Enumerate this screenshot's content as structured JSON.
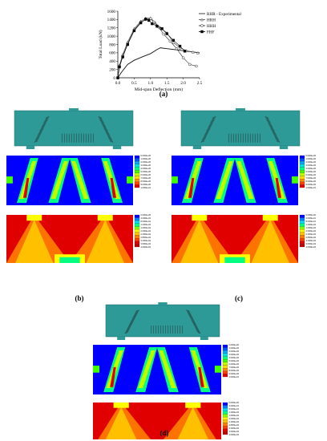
{
  "figure": {
    "labels": [
      "(a)",
      "(b)",
      "(c)",
      "(d)"
    ]
  },
  "chart_data": {
    "type": "line",
    "xlabel": "Mid-span Deflection (mm)",
    "ylabel": "Total Load (kN)",
    "xlim": [
      0,
      2.5
    ],
    "ylim": [
      0,
      1600
    ],
    "xticks": [
      "0.0",
      "0.5",
      "1.0",
      "1.5",
      "2.0",
      "2.5"
    ],
    "yticks": [
      "0",
      "200",
      "400",
      "600",
      "800",
      "1000",
      "1200",
      "1400",
      "1600"
    ],
    "grid": false,
    "legend": "top-right",
    "series": [
      {
        "name": "RHR - Experimental",
        "marker": "none",
        "color": "#111111",
        "x": [
          0,
          0.1,
          0.3,
          0.5,
          0.8,
          1.0,
          1.2,
          1.3,
          1.5,
          1.8,
          2.0,
          2.2,
          2.5
        ],
        "y": [
          0,
          120,
          320,
          420,
          520,
          580,
          680,
          720,
          700,
          670,
          650,
          630,
          600
        ]
      },
      {
        "name": "HRH",
        "marker": "triangle",
        "color": "#444444",
        "x": [
          0,
          0.05,
          0.15,
          0.3,
          0.5,
          0.7,
          0.85,
          1.0,
          1.15,
          1.3,
          1.5,
          1.7,
          1.9,
          2.1,
          2.3,
          2.45
        ],
        "y": [
          0,
          300,
          560,
          860,
          1180,
          1360,
          1430,
          1440,
          1320,
          1200,
          1080,
          850,
          720,
          650,
          620,
          600
        ]
      },
      {
        "name": "HHH",
        "marker": "circle",
        "color": "#222222",
        "x": [
          0,
          0.05,
          0.15,
          0.3,
          0.5,
          0.7,
          0.85,
          1.0,
          1.1,
          1.25,
          1.4,
          1.6,
          1.8,
          2.0,
          2.2,
          2.4
        ],
        "y": [
          0,
          280,
          520,
          820,
          1150,
          1330,
          1400,
          1420,
          1340,
          1220,
          1050,
          880,
          700,
          480,
          320,
          280
        ]
      },
      {
        "name": "FHF",
        "marker": "square",
        "color": "#000000",
        "x": [
          0,
          0.05,
          0.15,
          0.3,
          0.5,
          0.7,
          0.85,
          0.95,
          1.05,
          1.2,
          1.35,
          1.5,
          1.7,
          1.9,
          2.05
        ],
        "y": [
          0,
          260,
          500,
          800,
          1130,
          1320,
          1410,
          1380,
          1300,
          1240,
          1180,
          1060,
          900,
          760,
          640
        ]
      }
    ]
  },
  "legend_colorbar_a": [
    "0.000E+00",
    "1.000E+00",
    "2.000E+00",
    "3.000E+00",
    "4.000E+00",
    "5.000E+00",
    "6.000E+00",
    "7.000E+00",
    "8.000E+00",
    "9.000E+00",
    "1.000E+01"
  ],
  "legend_colorbar_b": [
    "0.000E+00",
    "4.000E+01",
    "8.000E+01",
    "1.200E+02",
    "1.600E+02",
    "2.000E+02",
    "2.400E+02",
    "2.800E+02",
    "3.200E+02",
    "3.600E+02",
    "4.000E+02"
  ],
  "colors": {
    "teal": "#2e9a97",
    "strain": [
      "#0000ff",
      "#0055ff",
      "#00aaff",
      "#00e0e0",
      "#00ff80",
      "#40ff00",
      "#c0ff00",
      "#ffe000",
      "#ff9000",
      "#ff4000",
      "#e00000"
    ],
    "stress": [
      "#0000ff",
      "#0080ff",
      "#00e0ff",
      "#00ff80",
      "#80ff00",
      "#ffff00",
      "#ffc000",
      "#ff8000",
      "#ff4000",
      "#e00000",
      "#c00000"
    ]
  }
}
